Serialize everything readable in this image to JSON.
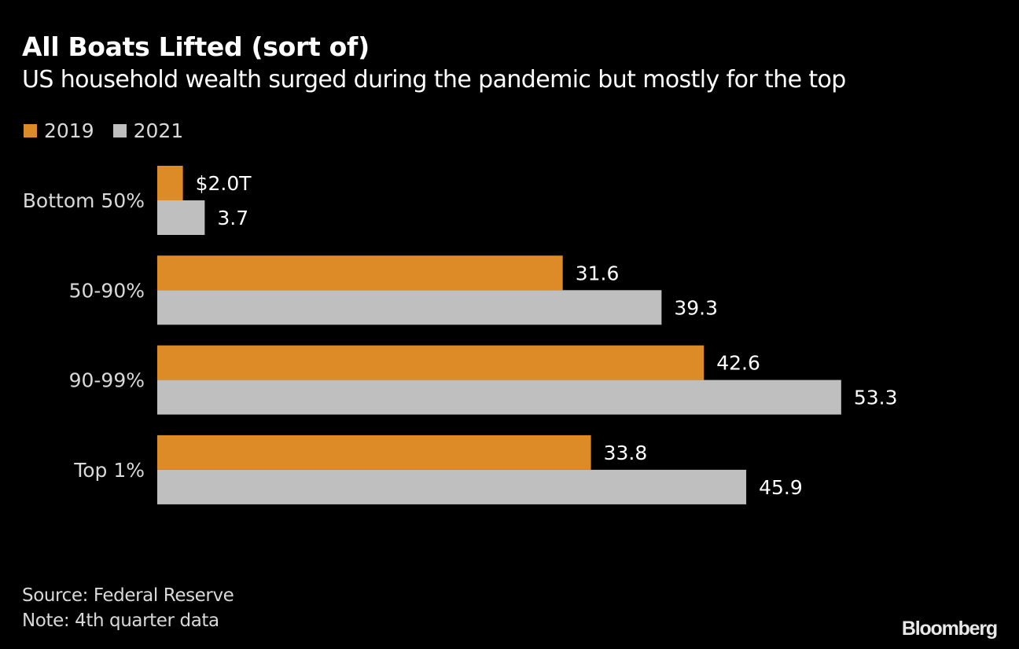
{
  "header": {
    "title": "All Boats Lifted (sort of)",
    "subtitle": "US household wealth surged during the pandemic but mostly for the top"
  },
  "footer": {
    "source": "Source: Federal Reserve",
    "note": "Note: 4th quarter data",
    "brand": "Bloomberg"
  },
  "chart_data": {
    "type": "bar",
    "orientation": "horizontal",
    "title": "All Boats Lifted (sort of)",
    "subtitle": "US household wealth surged during the pandemic but mostly for the top",
    "xlabel": "",
    "ylabel": "",
    "unit": "trillion USD",
    "categories": [
      "Bottom 50%",
      "50-90%",
      "90-99%",
      "Top 1%"
    ],
    "series": [
      {
        "name": "2019",
        "color": "#dd8b26",
        "values": [
          2.0,
          31.6,
          42.6,
          33.8
        ],
        "labels": [
          "$2.0T",
          "31.6",
          "42.6",
          "33.8"
        ]
      },
      {
        "name": "2021",
        "color": "#bfbfbf",
        "values": [
          3.7,
          39.3,
          53.3,
          45.9
        ],
        "labels": [
          "3.7",
          "39.3",
          "53.3",
          "45.9"
        ]
      }
    ],
    "xlim": [
      0,
      60
    ],
    "grid": false,
    "legend_position": "top-left",
    "axis_ticks_shown": false
  }
}
